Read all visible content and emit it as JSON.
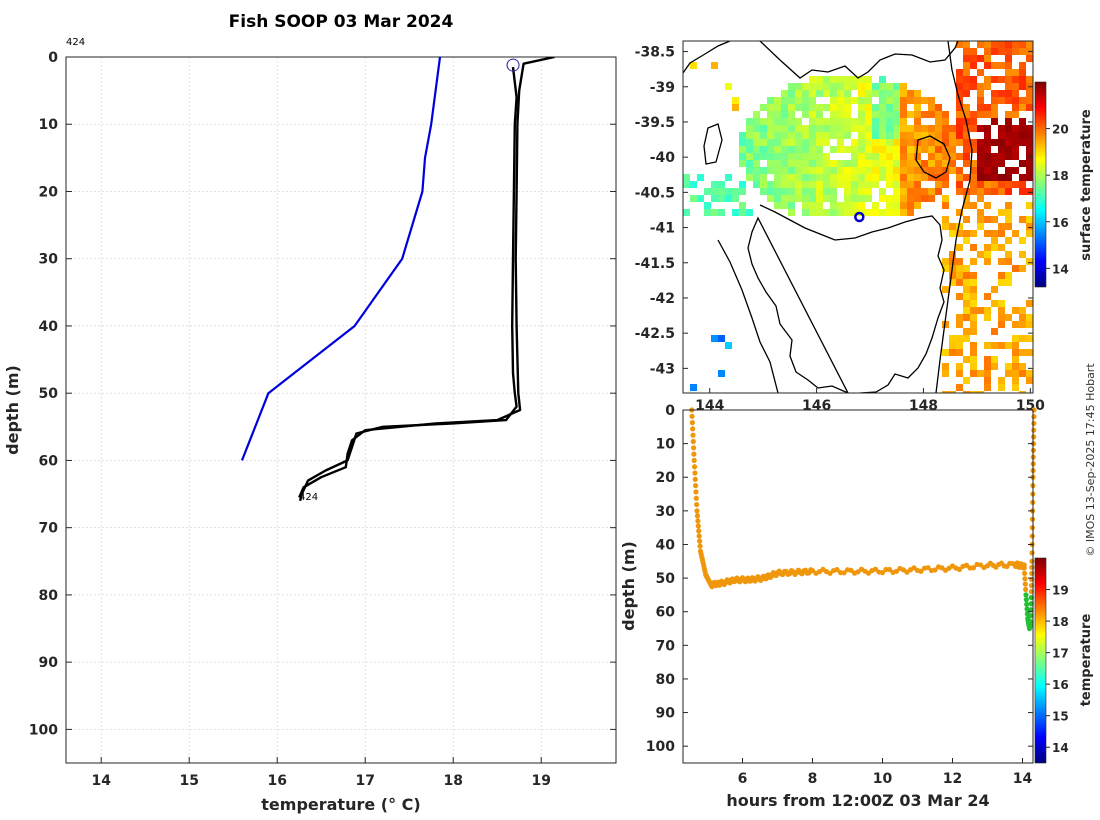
{
  "colors": {
    "model_line": "#0000dd",
    "observed_line": "#000000",
    "trace_main": "#f0960a",
    "trace_cool": "#22c030",
    "colormap": [
      "#00007f",
      "#0000ff",
      "#007fff",
      "#00ffff",
      "#7fff7f",
      "#ffff00",
      "#ff7f00",
      "#ff0000",
      "#7f0000"
    ]
  },
  "profile": {
    "title": "Fish SOOP 03 Mar 2024",
    "xlabel": "temperature (° C)",
    "ylabel": "depth (m)",
    "id_top": "424",
    "id_bottom": "424",
    "grid": true
  },
  "map": {
    "colorbar_label": "surface temperature",
    "lat_ticks": [
      "-38.5",
      "-39",
      "-39.5",
      "-40",
      "-40.5",
      "-41",
      "-41.5",
      "-42",
      "-42.5",
      "-43"
    ],
    "lon_ticks": [
      "144",
      "146",
      "148",
      "150"
    ],
    "colorbar_ticks": [
      "14",
      "16",
      "18",
      "20"
    ],
    "marker": {
      "lon": 146.8,
      "lat": -40.85
    }
  },
  "timeseries": {
    "xlabel": "hours from 12:00Z 03 Mar 24",
    "ylabel": "depth (m)",
    "colorbar_label": "temperature",
    "colorbar_ticks": [
      "14",
      "15",
      "16",
      "17",
      "18",
      "19"
    ]
  },
  "credit": "© IMOS 13-Sep-2025 17:45 Hobart",
  "chart_data": [
    {
      "type": "line",
      "title": "Fish SOOP 03 Mar 2024",
      "xlabel": "temperature (° C)",
      "ylabel": "depth (m)",
      "xlim": [
        13.6,
        19.85
      ],
      "ylim": [
        105,
        0
      ],
      "xticks": [
        14,
        15,
        16,
        17,
        18,
        19
      ],
      "yticks": [
        0,
        10,
        20,
        30,
        40,
        50,
        60,
        70,
        80,
        90,
        100
      ],
      "series": [
        {
          "color": "#0000dd",
          "x": [
            17.85,
            17.75,
            17.68,
            17.65,
            17.42,
            16.88,
            15.9,
            15.6
          ],
          "y": [
            0,
            10,
            15,
            20,
            30,
            40,
            50,
            60
          ]
        },
        {
          "color": "#000000",
          "x": [
            18.68,
            18.72,
            18.7,
            18.69,
            18.68,
            18.67,
            18.68,
            18.7,
            18.72,
            18.6,
            18.0,
            17.2,
            16.9,
            16.85,
            16.8,
            16.55,
            16.35,
            16.28,
            16.26
          ],
          "y": [
            1.5,
            6,
            10,
            20,
            30,
            40,
            47,
            50,
            52,
            54,
            54.5,
            55,
            56,
            58,
            60,
            61.5,
            63,
            65,
            66
          ]
        },
        {
          "color": "#000000",
          "x": [
            19.15,
            18.8,
            18.75,
            18.73,
            18.72,
            18.71,
            18.72,
            18.74,
            18.76,
            18.5,
            17.8,
            17.0,
            16.85,
            16.8,
            16.78,
            16.5,
            16.3,
            16.25
          ],
          "y": [
            0,
            1,
            5,
            10,
            20,
            30,
            40,
            50,
            52.5,
            54,
            54.5,
            55.5,
            57,
            59,
            61,
            62.5,
            64,
            65.5
          ]
        }
      ],
      "marker": {
        "x": 18.68,
        "y": 1.2
      }
    },
    {
      "type": "heatmap",
      "title": "",
      "colorbar_label": "surface temperature",
      "xlim": [
        143.5,
        150.05
      ],
      "ylim": [
        -43.35,
        -38.35
      ],
      "xticks": [
        144,
        146,
        148,
        150
      ],
      "yticks": [
        -38.5,
        -39,
        -39.5,
        -40,
        -40.5,
        -41,
        -41.5,
        -42,
        -42.5,
        -43
      ],
      "clim": [
        13.2,
        22.0
      ],
      "marker": {
        "lon": 146.8,
        "lat": -40.85
      }
    },
    {
      "type": "scatter",
      "xlabel": "hours from 12:00Z 03 Mar 24",
      "ylabel": "depth (m)",
      "colorbar_label": "temperature",
      "xlim": [
        4.3,
        14.3
      ],
      "ylim": [
        105,
        0
      ],
      "xticks": [
        6,
        8,
        10,
        12,
        14
      ],
      "yticks": [
        0,
        10,
        20,
        30,
        40,
        50,
        60,
        70,
        80,
        90,
        100
      ],
      "clim": [
        13.5,
        20.0
      ],
      "descent": {
        "t": [
          4.55,
          4.62,
          4.7,
          4.8,
          4.95,
          5.1
        ],
        "d": [
          0,
          15,
          30,
          42,
          49,
          52
        ]
      },
      "bottom": {
        "t": [
          5.1,
          5.4,
          5.8,
          6.2,
          6.6,
          7.0,
          7.5,
          8.0,
          9.0,
          10.0,
          11.0,
          12.0,
          13.0,
          13.8,
          14.05
        ],
        "d": [
          52,
          51.5,
          50.5,
          50.5,
          50.0,
          48.5,
          48.3,
          48.0,
          48.0,
          47.9,
          47.5,
          47.0,
          46.2,
          46.0,
          46.5
        ],
        "temp": 18.6
      },
      "dip": {
        "t": [
          14.05,
          14.1,
          14.15,
          14.2,
          14.24
        ],
        "d": [
          47,
          55,
          62,
          65,
          63
        ],
        "temp": 17.3
      },
      "ascent": {
        "t": [
          14.24,
          14.27,
          14.3,
          14.33
        ],
        "d": [
          63,
          45,
          20,
          0
        ]
      }
    }
  ]
}
